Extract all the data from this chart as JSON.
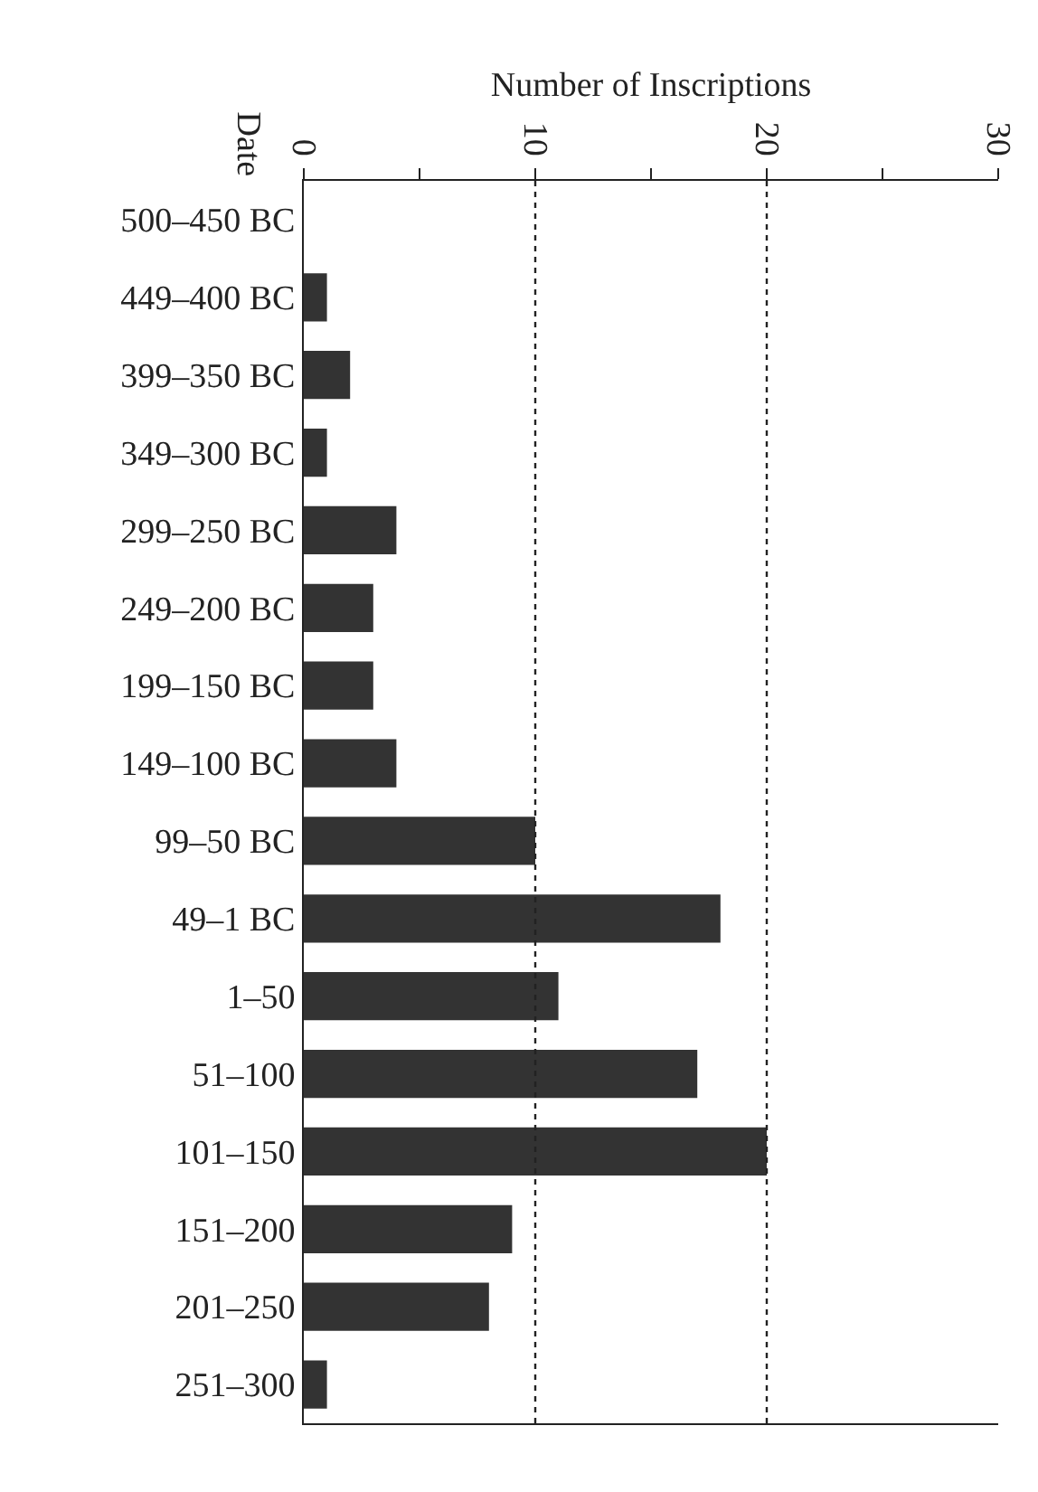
{
  "chart_data": {
    "type": "bar",
    "orientation": "horizontal",
    "xlabel": "Number of Inscriptions",
    "ylabel": "Date",
    "categories": [
      "500–450 BC",
      "449–400 BC",
      "399–350 BC",
      "349–300 BC",
      "299–250 BC",
      "249–200 BC",
      "199–150 BC",
      "149–100 BC",
      "99–50 BC",
      "49–1 BC",
      "1–50",
      "51–100",
      "101–150",
      "151–200",
      "201–250",
      "251–300"
    ],
    "values": [
      0,
      1,
      2,
      1,
      4,
      3,
      3,
      4,
      10,
      18,
      11,
      17,
      20,
      9,
      8,
      1
    ],
    "color": "#333333",
    "xlim": [
      0,
      30
    ],
    "xticks": [
      0,
      {
        "value": 5,
        "label": null
      },
      10,
      {
        "value": 15,
        "label": null
      },
      20,
      {
        "value": 25,
        "label": null
      },
      30
    ],
    "grid": "x",
    "line_style": "dotted"
  }
}
